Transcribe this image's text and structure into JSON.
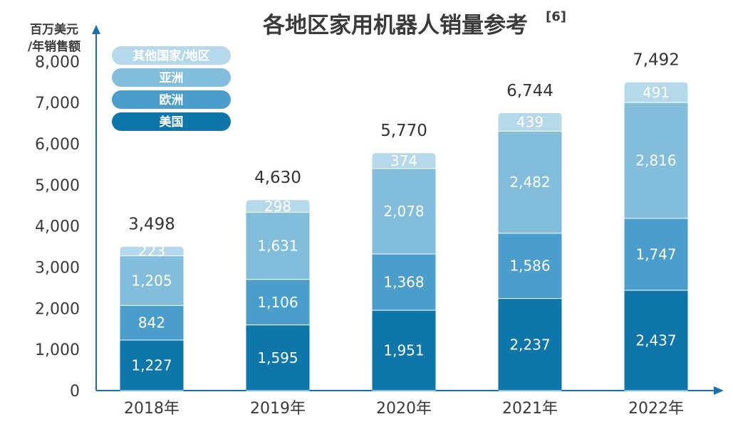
{
  "chart_data": {
    "type": "bar",
    "stacked": true,
    "title": "各地区家用机器人销量参考",
    "title_ref": "[6]",
    "ylabel": [
      "百万美元",
      "/年销售额"
    ],
    "ylim": [
      0,
      8800
    ],
    "yticks": [
      0,
      1000,
      2000,
      3000,
      4000,
      5000,
      6000,
      7000,
      8000
    ],
    "ytick_labels": [
      "0",
      "1,000",
      "2,000",
      "3,000",
      "4,000",
      "5,000",
      "6,000",
      "7,000",
      "8,000"
    ],
    "categories": [
      "2018年",
      "2019年",
      "2020年",
      "2021年",
      "2022年"
    ],
    "series": [
      {
        "name": "美国",
        "values": [
          1227,
          1595,
          1951,
          2237,
          2437
        ],
        "labels": [
          "1,227",
          "1,595",
          "1,951",
          "2,237",
          "2,437"
        ],
        "color": "#0e76a8"
      },
      {
        "name": "欧洲",
        "values": [
          842,
          1106,
          1368,
          1586,
          1747
        ],
        "labels": [
          "842",
          "1,106",
          "1,368",
          "1,586",
          "1,747"
        ],
        "color": "#4b9ecb"
      },
      {
        "name": "亚洲",
        "values": [
          1205,
          1631,
          2078,
          2482,
          2816
        ],
        "labels": [
          "1,205",
          "1,631",
          "2,078",
          "2,482",
          "2,816"
        ],
        "color": "#82bddc"
      },
      {
        "name": "其他国家/地区",
        "values": [
          223,
          298,
          374,
          439,
          491
        ],
        "labels": [
          "223",
          "298",
          "374",
          "439",
          "491"
        ],
        "color": "#b5d9ea"
      }
    ],
    "totals": [
      3498,
      4630,
      5770,
      6744,
      7492
    ],
    "total_labels": [
      "3,498",
      "4,630",
      "5,770",
      "6,744",
      "7,492"
    ],
    "legend_position": "top-left",
    "legend_order": [
      "其他国家/地区",
      "亚洲",
      "欧洲",
      "美国"
    ],
    "grid": false,
    "axis_color": "#1a6faa"
  }
}
